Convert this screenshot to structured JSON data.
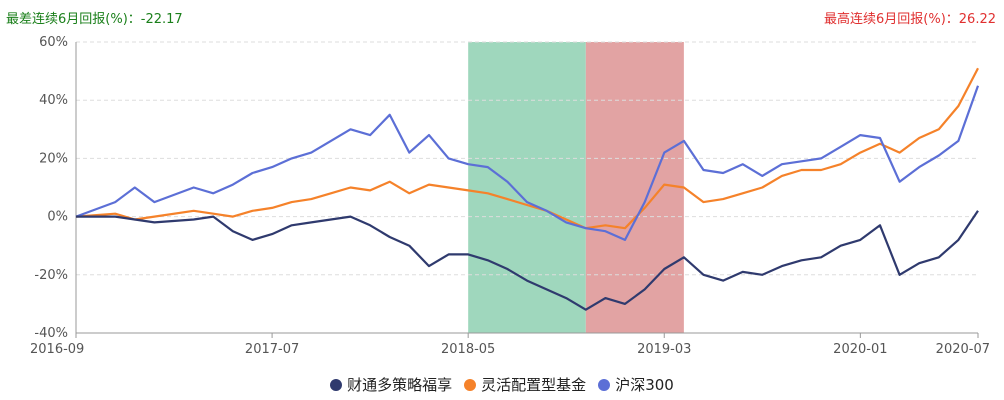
{
  "header": {
    "worst_label": "最差连续6月回报(%)：",
    "worst_value": "-22.17",
    "best_label": "最高连续6月回报(%)：",
    "best_value": "26.22"
  },
  "colors": {
    "fund": "#2f3a6e",
    "category": "#f5822a",
    "index": "#5c6fd6",
    "worst_band": "#9fd7bd",
    "best_band": "#e2a3a3",
    "worst_text": "#1a7f1a",
    "best_text": "#e03030"
  },
  "chart_data": {
    "type": "line",
    "x_ticks": [
      "2016-09",
      "2017-07",
      "2018-05",
      "2019-03",
      "2020-01",
      "2020-07"
    ],
    "y_ticks": [
      "60%",
      "40%",
      "20%",
      "0%",
      "-20%",
      "-40%"
    ],
    "ylim": [
      -40,
      60
    ],
    "xlim": [
      "2016-09",
      "2020-07"
    ],
    "grid": "horizontal dashed",
    "legend_position": "bottom",
    "highlight_bands": [
      {
        "label": "最差连续6月",
        "start": "2018-05",
        "end": "2018-11"
      },
      {
        "label": "最高连续6月",
        "start": "2018-11",
        "end": "2019-04"
      }
    ],
    "series": [
      {
        "name": "财通多策略福享",
        "color_key": "fund",
        "points": [
          [
            "2016-09",
            0
          ],
          [
            "2016-11",
            0
          ],
          [
            "2016-12",
            -1
          ],
          [
            "2017-01",
            -2
          ],
          [
            "2017-03",
            -1
          ],
          [
            "2017-04",
            0
          ],
          [
            "2017-05",
            -5
          ],
          [
            "2017-06",
            -8
          ],
          [
            "2017-07",
            -6
          ],
          [
            "2017-08",
            -3
          ],
          [
            "2017-09",
            -2
          ],
          [
            "2017-10",
            -1
          ],
          [
            "2017-11",
            0
          ],
          [
            "2017-12",
            -3
          ],
          [
            "2018-01",
            -7
          ],
          [
            "2018-02",
            -10
          ],
          [
            "2018-03",
            -17
          ],
          [
            "2018-04",
            -13
          ],
          [
            "2018-05",
            -13
          ],
          [
            "2018-06",
            -15
          ],
          [
            "2018-07",
            -18
          ],
          [
            "2018-08",
            -22
          ],
          [
            "2018-09",
            -25
          ],
          [
            "2018-10",
            -28
          ],
          [
            "2018-11",
            -32
          ],
          [
            "2018-12",
            -28
          ],
          [
            "2019-01",
            -30
          ],
          [
            "2019-02",
            -25
          ],
          [
            "2019-03",
            -18
          ],
          [
            "2019-04",
            -14
          ],
          [
            "2019-05",
            -20
          ],
          [
            "2019-06",
            -22
          ],
          [
            "2019-07",
            -19
          ],
          [
            "2019-08",
            -20
          ],
          [
            "2019-09",
            -17
          ],
          [
            "2019-10",
            -15
          ],
          [
            "2019-11",
            -14
          ],
          [
            "2019-12",
            -10
          ],
          [
            "2020-01",
            -8
          ],
          [
            "2020-02",
            -3
          ],
          [
            "2020-03",
            -20
          ],
          [
            "2020-04",
            -16
          ],
          [
            "2020-05",
            -14
          ],
          [
            "2020-06",
            -8
          ],
          [
            "2020-07",
            2
          ]
        ]
      },
      {
        "name": "灵活配置型基金",
        "color_key": "category",
        "points": [
          [
            "2016-09",
            0
          ],
          [
            "2016-11",
            1
          ],
          [
            "2016-12",
            -1
          ],
          [
            "2017-01",
            0
          ],
          [
            "2017-03",
            2
          ],
          [
            "2017-04",
            1
          ],
          [
            "2017-05",
            0
          ],
          [
            "2017-06",
            2
          ],
          [
            "2017-07",
            3
          ],
          [
            "2017-08",
            5
          ],
          [
            "2017-09",
            6
          ],
          [
            "2017-10",
            8
          ],
          [
            "2017-11",
            10
          ],
          [
            "2017-12",
            9
          ],
          [
            "2018-01",
            12
          ],
          [
            "2018-02",
            8
          ],
          [
            "2018-03",
            11
          ],
          [
            "2018-04",
            10
          ],
          [
            "2018-05",
            9
          ],
          [
            "2018-06",
            8
          ],
          [
            "2018-07",
            6
          ],
          [
            "2018-08",
            4
          ],
          [
            "2018-09",
            2
          ],
          [
            "2018-10",
            -1
          ],
          [
            "2018-11",
            -4
          ],
          [
            "2018-12",
            -3
          ],
          [
            "2019-01",
            -4
          ],
          [
            "2019-02",
            3
          ],
          [
            "2019-03",
            11
          ],
          [
            "2019-04",
            10
          ],
          [
            "2019-05",
            5
          ],
          [
            "2019-06",
            6
          ],
          [
            "2019-07",
            8
          ],
          [
            "2019-08",
            10
          ],
          [
            "2019-09",
            14
          ],
          [
            "2019-10",
            16
          ],
          [
            "2019-11",
            16
          ],
          [
            "2019-12",
            18
          ],
          [
            "2020-01",
            22
          ],
          [
            "2020-02",
            25
          ],
          [
            "2020-03",
            22
          ],
          [
            "2020-04",
            27
          ],
          [
            "2020-05",
            30
          ],
          [
            "2020-06",
            38
          ],
          [
            "2020-07",
            51
          ]
        ]
      },
      {
        "name": "沪深300",
        "color_key": "index",
        "points": [
          [
            "2016-09",
            0
          ],
          [
            "2016-11",
            5
          ],
          [
            "2016-12",
            10
          ],
          [
            "2017-01",
            5
          ],
          [
            "2017-03",
            10
          ],
          [
            "2017-04",
            8
          ],
          [
            "2017-05",
            11
          ],
          [
            "2017-06",
            15
          ],
          [
            "2017-07",
            17
          ],
          [
            "2017-08",
            20
          ],
          [
            "2017-09",
            22
          ],
          [
            "2017-10",
            26
          ],
          [
            "2017-11",
            30
          ],
          [
            "2017-12",
            28
          ],
          [
            "2018-01",
            35
          ],
          [
            "2018-02",
            22
          ],
          [
            "2018-03",
            28
          ],
          [
            "2018-04",
            20
          ],
          [
            "2018-05",
            18
          ],
          [
            "2018-06",
            17
          ],
          [
            "2018-07",
            12
          ],
          [
            "2018-08",
            5
          ],
          [
            "2018-09",
            2
          ],
          [
            "2018-10",
            -2
          ],
          [
            "2018-11",
            -4
          ],
          [
            "2018-12",
            -5
          ],
          [
            "2019-01",
            -8
          ],
          [
            "2019-02",
            5
          ],
          [
            "2019-03",
            22
          ],
          [
            "2019-04",
            26
          ],
          [
            "2019-05",
            16
          ],
          [
            "2019-06",
            15
          ],
          [
            "2019-07",
            18
          ],
          [
            "2019-08",
            14
          ],
          [
            "2019-09",
            18
          ],
          [
            "2019-10",
            19
          ],
          [
            "2019-11",
            20
          ],
          [
            "2019-12",
            24
          ],
          [
            "2020-01",
            28
          ],
          [
            "2020-02",
            27
          ],
          [
            "2020-03",
            12
          ],
          [
            "2020-04",
            17
          ],
          [
            "2020-05",
            21
          ],
          [
            "2020-06",
            26
          ],
          [
            "2020-07",
            45
          ]
        ]
      }
    ]
  }
}
